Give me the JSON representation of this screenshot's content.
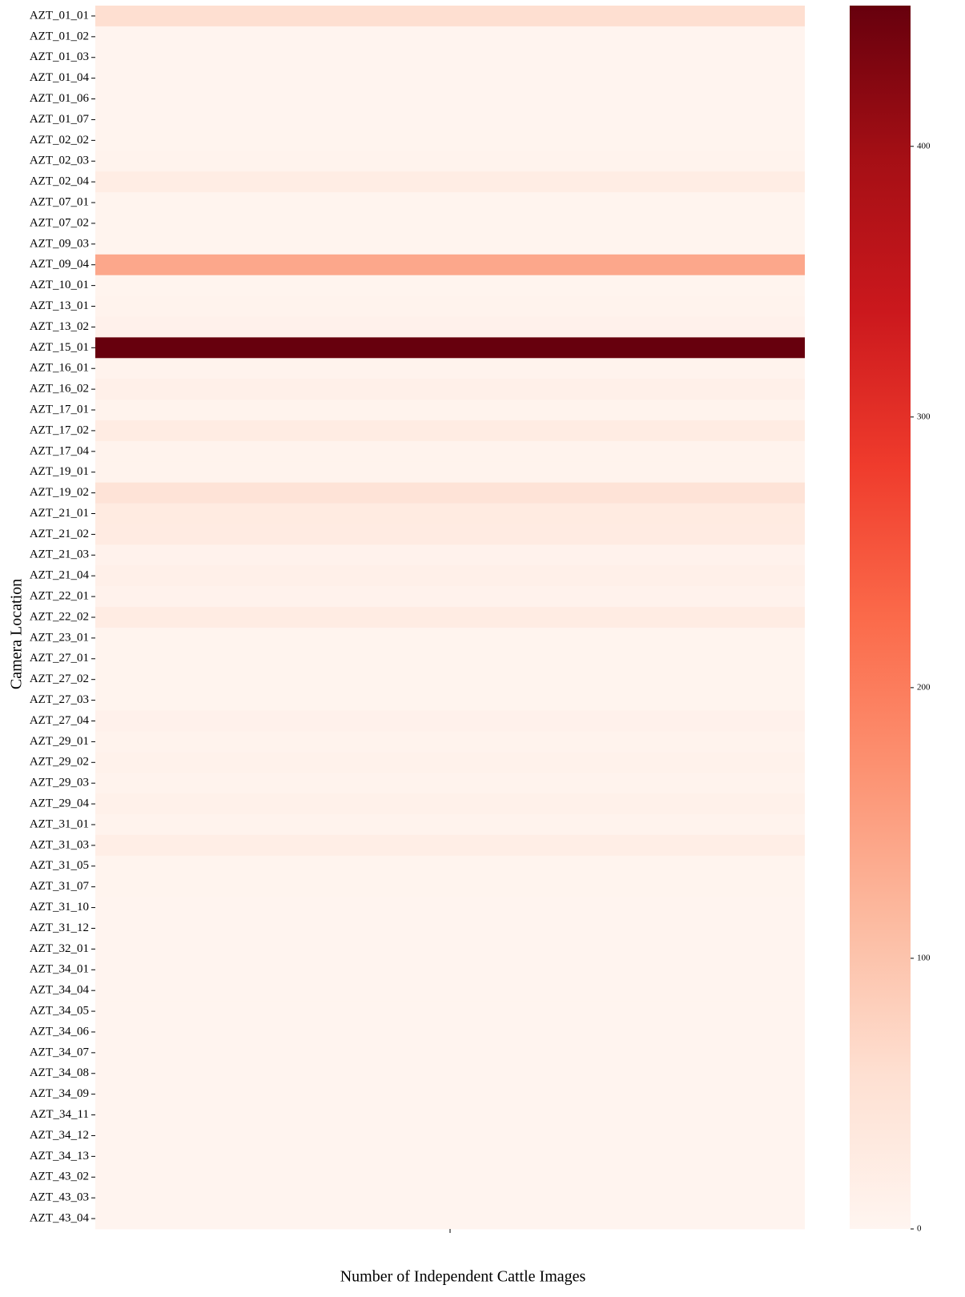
{
  "chart_data": {
    "type": "heatmap",
    "y_label": "Camera Location",
    "x_label": "Number of Independent Cattle Images",
    "categories": [
      "AZT_01_01",
      "AZT_01_02",
      "AZT_01_03",
      "AZT_01_04",
      "AZT_01_06",
      "AZT_01_07",
      "AZT_02_02",
      "AZT_02_03",
      "AZT_02_04",
      "AZT_07_01",
      "AZT_07_02",
      "AZT_09_03",
      "AZT_09_04",
      "AZT_10_01",
      "AZT_13_01",
      "AZT_13_02",
      "AZT_15_01",
      "AZT_16_01",
      "AZT_16_02",
      "AZT_17_01",
      "AZT_17_02",
      "AZT_17_04",
      "AZT_19_01",
      "AZT_19_02",
      "AZT_21_01",
      "AZT_21_02",
      "AZT_21_03",
      "AZT_21_04",
      "AZT_22_01",
      "AZT_22_02",
      "AZT_23_01",
      "AZT_27_01",
      "AZT_27_02",
      "AZT_27_03",
      "AZT_27_04",
      "AZT_29_01",
      "AZT_29_02",
      "AZT_29_03",
      "AZT_29_04",
      "AZT_31_01",
      "AZT_31_03",
      "AZT_31_05",
      "AZT_31_07",
      "AZT_31_10",
      "AZT_31_12",
      "AZT_32_01",
      "AZT_34_01",
      "AZT_34_04",
      "AZT_34_05",
      "AZT_34_06",
      "AZT_34_07",
      "AZT_34_08",
      "AZT_34_09",
      "AZT_34_11",
      "AZT_34_12",
      "AZT_34_13",
      "AZT_43_02",
      "AZT_43_03",
      "AZT_43_04"
    ],
    "values": [
      58,
      2,
      2,
      2,
      2,
      2,
      3,
      5,
      22,
      3,
      3,
      4,
      140,
      4,
      6,
      10,
      452,
      6,
      14,
      6,
      24,
      5,
      5,
      48,
      28,
      26,
      7,
      14,
      8,
      24,
      3,
      3,
      3,
      3,
      10,
      5,
      9,
      6,
      12,
      6,
      18,
      4,
      3,
      2,
      2,
      2,
      2,
      2,
      2,
      2,
      2,
      2,
      2,
      2,
      2,
      2,
      2,
      2,
      2
    ],
    "clim": [
      0,
      452
    ],
    "cticks": [
      0,
      100,
      200,
      300,
      400
    ],
    "colormap": [
      "#fff5f0",
      "#fee0d2",
      "#fcbba1",
      "#fc9272",
      "#fb6a4a",
      "#ef3b2c",
      "#cb181d",
      "#a50f15",
      "#67000d"
    ]
  }
}
